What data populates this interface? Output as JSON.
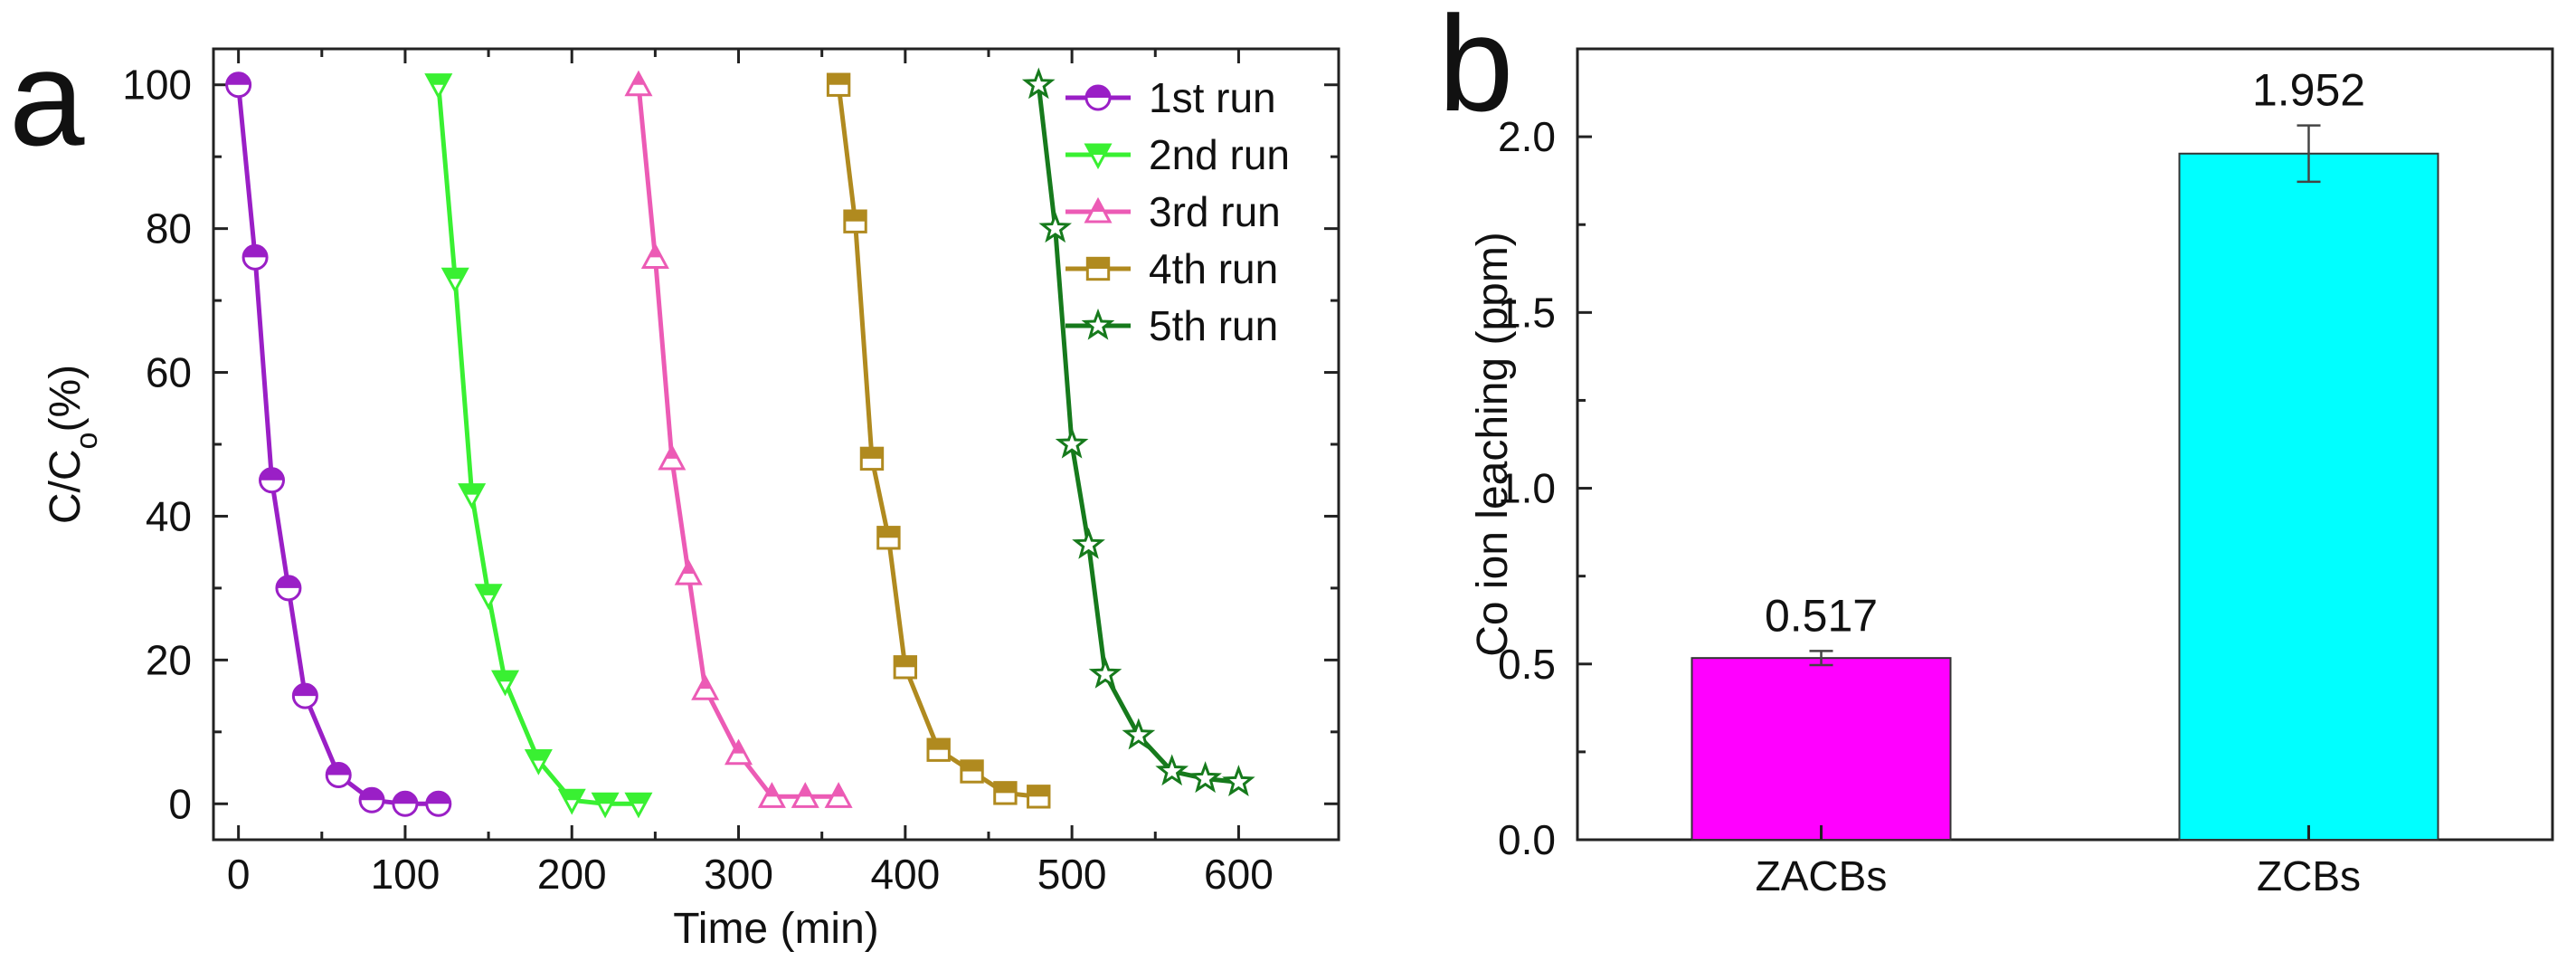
{
  "chart_data": [
    {
      "panel": "a",
      "type": "line",
      "xlabel": "Time (min)",
      "ylabel": "C/C",
      "ylabel_sub": "o",
      "ylabel_suffix": "(%)",
      "xlim": [
        -15,
        660
      ],
      "ylim": [
        -5,
        105
      ],
      "xticks": [
        0,
        100,
        200,
        300,
        400,
        500,
        600
      ],
      "yticks": [
        0,
        20,
        40,
        60,
        80,
        100
      ],
      "grid": false,
      "legend_position": "top-right",
      "series": [
        {
          "name": "1st run",
          "color": "#9a1fc6",
          "marker": "circle-half",
          "x": [
            0,
            10,
            20,
            30,
            40,
            60,
            80,
            100,
            120
          ],
          "y": [
            100,
            76,
            45,
            30,
            15,
            4,
            0.5,
            0,
            0
          ]
        },
        {
          "name": "2nd run",
          "color": "#39f032",
          "marker": "triangle-down-half",
          "x": [
            120,
            130,
            140,
            150,
            160,
            180,
            200,
            220,
            240
          ],
          "y": [
            100,
            73,
            43,
            29,
            17,
            6,
            0.5,
            0,
            0
          ]
        },
        {
          "name": "3rd run",
          "color": "#ec5bb5",
          "marker": "triangle-up-half",
          "x": [
            240,
            250,
            260,
            270,
            280,
            300,
            320,
            340,
            360
          ],
          "y": [
            100,
            76,
            48,
            32,
            16,
            7,
            1,
            1,
            1
          ]
        },
        {
          "name": "4th run",
          "color": "#b08a1f",
          "marker": "square-half",
          "x": [
            360,
            370,
            380,
            390,
            400,
            420,
            440,
            460,
            480
          ],
          "y": [
            100,
            81,
            48,
            37,
            19,
            7.5,
            4.5,
            1.5,
            1
          ]
        },
        {
          "name": "5th run",
          "color": "#167a1c",
          "marker": "star",
          "x": [
            480,
            490,
            500,
            510,
            520,
            540,
            560,
            580,
            600
          ],
          "y": [
            100,
            80,
            50,
            36,
            18,
            9.5,
            4.5,
            3.5,
            3
          ]
        }
      ]
    },
    {
      "panel": "b",
      "type": "bar",
      "ylabel": "Co ion leaching (ppm)",
      "ylim": [
        0,
        2.25
      ],
      "yticks": [
        "0.0",
        "0.5",
        "1.0",
        "1.5",
        "2.0"
      ],
      "categories": [
        "ZACBs",
        "ZCBs"
      ],
      "values": [
        0.517,
        1.952
      ],
      "errors": [
        0.02,
        0.08
      ],
      "value_labels": [
        "0.517",
        "1.952"
      ],
      "colors": [
        "#ff00ff",
        "#00ffff"
      ],
      "grid": false
    }
  ]
}
